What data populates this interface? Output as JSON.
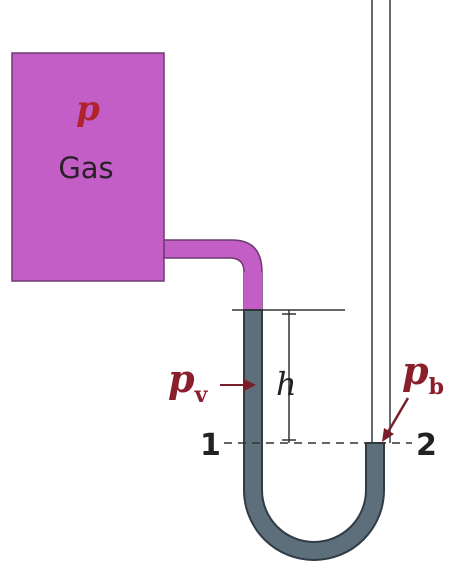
{
  "diagram": {
    "gas_pressure_label": "p",
    "gas_label": "Gas",
    "vacuum_pressure_label": "p",
    "vacuum_pressure_subscript": "v",
    "height_label": "h",
    "barometric_pressure_label": "p",
    "barometric_pressure_subscript": "b",
    "point_left_label": "1",
    "point_right_label": "2"
  },
  "colors": {
    "gas": "#c25ec6",
    "gas_outline": "#6e3b70",
    "liquid": "#5e6f7c",
    "tube_outline": "#2f3c46",
    "label_red": "#b0232c",
    "arrow_red": "#7a1f2a",
    "line": "#333333"
  }
}
